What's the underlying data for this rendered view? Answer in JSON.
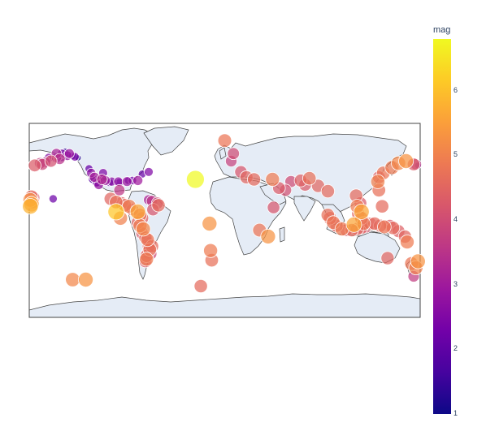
{
  "colorbar": {
    "title": "mag",
    "ticks": [
      "1",
      "2",
      "3",
      "4",
      "5",
      "6"
    ],
    "range": [
      1,
      6.8
    ],
    "colorscale": [
      "#0d0887",
      "#46039f",
      "#7201a8",
      "#9c179e",
      "#bd3786",
      "#d8576b",
      "#ed7953",
      "#fb9f3a",
      "#fdca26",
      "#f0f921"
    ]
  },
  "map_data": {
    "projection": "equirectangular",
    "land_color": "#e5ecf6",
    "coastline_color": "#444444",
    "points": [
      {
        "lon": -178,
        "lat": 22,
        "mag": 4.6
      },
      {
        "lon": -177,
        "lat": 17,
        "mag": 4.8
      },
      {
        "lon": -179,
        "lat": 19,
        "mag": 5.2
      },
      {
        "lon": -178,
        "lat": 15,
        "mag": 5.5
      },
      {
        "lon": -176,
        "lat": 21,
        "mag": 4.2
      },
      {
        "lon": -179,
        "lat": 13,
        "mag": 5.8
      },
      {
        "lon": -170,
        "lat": 53,
        "mag": 3.7
      },
      {
        "lon": -165,
        "lat": 54,
        "mag": 3.3
      },
      {
        "lon": -160,
        "lat": 55,
        "mag": 4.1
      },
      {
        "lon": -155,
        "lat": 58,
        "mag": 3.0
      },
      {
        "lon": -152,
        "lat": 60,
        "mag": 2.2
      },
      {
        "lon": -150,
        "lat": 62,
        "mag": 2.5
      },
      {
        "lon": -148,
        "lat": 61,
        "mag": 1.7
      },
      {
        "lon": -147,
        "lat": 64,
        "mag": 1.4
      },
      {
        "lon": -145,
        "lat": 60,
        "mag": 2.8
      },
      {
        "lon": -152,
        "lat": 57,
        "mag": 3.5
      },
      {
        "lon": -140,
        "lat": 60,
        "mag": 1.9
      },
      {
        "lon": -138,
        "lat": 59,
        "mag": 2.4
      },
      {
        "lon": -135,
        "lat": 58,
        "mag": 1.2
      },
      {
        "lon": -143,
        "lat": 62,
        "mag": 2.9
      },
      {
        "lon": -155,
        "lat": 62,
        "mag": 3.2
      },
      {
        "lon": -162,
        "lat": 58,
        "mag": 2.6
      },
      {
        "lon": -150,
        "lat": 58,
        "mag": 1.8
      },
      {
        "lon": -175,
        "lat": 51,
        "mag": 4.3
      },
      {
        "lon": -168,
        "lat": 52,
        "mag": 3.9
      },
      {
        "lon": -125,
        "lat": 48,
        "mag": 2.1
      },
      {
        "lon": -123,
        "lat": 44,
        "mag": 2.7
      },
      {
        "lon": -122,
        "lat": 38,
        "mag": 1.9
      },
      {
        "lon": -121,
        "lat": 37,
        "mag": 1.3
      },
      {
        "lon": -118,
        "lat": 35,
        "mag": 2.3
      },
      {
        "lon": -117,
        "lat": 34,
        "mag": 1.5
      },
      {
        "lon": -116,
        "lat": 33,
        "mag": 2.8
      },
      {
        "lon": -120,
        "lat": 40,
        "mag": 3.1
      },
      {
        "lon": -119,
        "lat": 38,
        "mag": 1.6
      },
      {
        "lon": -116,
        "lat": 37,
        "mag": 2.2
      },
      {
        "lon": -113,
        "lat": 38,
        "mag": 3.3
      },
      {
        "lon": -111,
        "lat": 40,
        "mag": 1.8
      },
      {
        "lon": -112,
        "lat": 44,
        "mag": 2.5
      },
      {
        "lon": -110,
        "lat": 37,
        "mag": 3.0
      },
      {
        "lon": -106,
        "lat": 35,
        "mag": 2.0
      },
      {
        "lon": -104,
        "lat": 36,
        "mag": 2.6
      },
      {
        "lon": -98,
        "lat": 36,
        "mag": 2.7
      },
      {
        "lon": -97,
        "lat": 35,
        "mag": 2.2
      },
      {
        "lon": -97,
        "lat": 28,
        "mag": 3.6
      },
      {
        "lon": -90,
        "lat": 36,
        "mag": 2.9
      },
      {
        "lon": -89,
        "lat": 37,
        "mag": 1.9
      },
      {
        "lon": -85,
        "lat": 37,
        "mag": 2.3
      },
      {
        "lon": -80,
        "lat": 37,
        "mag": 3.0
      },
      {
        "lon": -76,
        "lat": 43,
        "mag": 2.1
      },
      {
        "lon": -70,
        "lat": 45,
        "mag": 2.5
      },
      {
        "lon": -158,
        "lat": 20,
        "mag": 2.2
      },
      {
        "lon": -105,
        "lat": 20,
        "mag": 4.5
      },
      {
        "lon": -100,
        "lat": 17,
        "mag": 4.7
      },
      {
        "lon": -95,
        "lat": 16,
        "mag": 4.4
      },
      {
        "lon": -92,
        "lat": 14,
        "mag": 4.6
      },
      {
        "lon": -88,
        "lat": 13,
        "mag": 4.9
      },
      {
        "lon": -85,
        "lat": 10,
        "mag": 4.3
      },
      {
        "lon": -80,
        "lat": 8,
        "mag": 5.6
      },
      {
        "lon": -78,
        "lat": 5,
        "mag": 4.8
      },
      {
        "lon": -76,
        "lat": 2,
        "mag": 4.4
      },
      {
        "lon": -80,
        "lat": -2,
        "mag": 4.5
      },
      {
        "lon": -78,
        "lat": -5,
        "mag": 4.9
      },
      {
        "lon": -75,
        "lat": -8,
        "mag": 5.1
      },
      {
        "lon": -100,
        "lat": 8,
        "mag": 6.1
      },
      {
        "lon": -96,
        "lat": 2,
        "mag": 5.0
      },
      {
        "lon": -67,
        "lat": 18,
        "mag": 3.6
      },
      {
        "lon": -65,
        "lat": 17,
        "mag": 2.4
      },
      {
        "lon": -62,
        "lat": 16,
        "mag": 4.0
      },
      {
        "lon": -61,
        "lat": 14,
        "mag": 4.6
      },
      {
        "lon": -66,
        "lat": 10,
        "mag": 4.2
      },
      {
        "lon": -70,
        "lat": 19,
        "mag": 3.2
      },
      {
        "lon": -76,
        "lat": -12,
        "mag": 4.3
      },
      {
        "lon": -73,
        "lat": -16,
        "mag": 4.5
      },
      {
        "lon": -71,
        "lat": -18,
        "mag": 4.8
      },
      {
        "lon": -70,
        "lat": -21,
        "mag": 4.2
      },
      {
        "lon": -70,
        "lat": -24,
        "mag": 4.4
      },
      {
        "lon": -69,
        "lat": -27,
        "mag": 4.7
      },
      {
        "lon": -71,
        "lat": -30,
        "mag": 4.1
      },
      {
        "lon": -72,
        "lat": -33,
        "mag": 4.5
      },
      {
        "lon": -72,
        "lat": -36,
        "mag": 4.9
      },
      {
        "lon": -73,
        "lat": -38,
        "mag": 4.3
      },
      {
        "lon": -67,
        "lat": -24,
        "mag": 4.6
      },
      {
        "lon": -68,
        "lat": -31,
        "mag": 4.0
      },
      {
        "lon": -140,
        "lat": -55,
        "mag": 5.1
      },
      {
        "lon": -128,
        "lat": -55,
        "mag": 5.3
      },
      {
        "lon": -27,
        "lat": 38,
        "mag": 6.8
      },
      {
        "lon": -14,
        "lat": -3,
        "mag": 5.3
      },
      {
        "lon": -13,
        "lat": -28,
        "mag": 4.9
      },
      {
        "lon": -12,
        "lat": -37,
        "mag": 4.7
      },
      {
        "lon": -22,
        "lat": -61,
        "mag": 4.6
      },
      {
        "lon": 0,
        "lat": 74,
        "mag": 4.8
      },
      {
        "lon": 8,
        "lat": 62,
        "mag": 4.0
      },
      {
        "lon": 6,
        "lat": 55,
        "mag": 3.8
      },
      {
        "lon": 15,
        "lat": 45,
        "mag": 4.2
      },
      {
        "lon": 20,
        "lat": 40,
        "mag": 4.5
      },
      {
        "lon": 27,
        "lat": 38,
        "mag": 4.6
      },
      {
        "lon": 44,
        "lat": 38,
        "mag": 4.9
      },
      {
        "lon": 50,
        "lat": 30,
        "mag": 4.3
      },
      {
        "lon": 56,
        "lat": 28,
        "mag": 4.1
      },
      {
        "lon": 70,
        "lat": 37,
        "mag": 4.4
      },
      {
        "lon": 78,
        "lat": 39,
        "mag": 4.7
      },
      {
        "lon": 86,
        "lat": 32,
        "mag": 4.5
      },
      {
        "lon": 95,
        "lat": 27,
        "mag": 4.6
      },
      {
        "lon": 74,
        "lat": 33,
        "mag": 4.3
      },
      {
        "lon": 61,
        "lat": 36,
        "mag": 4.0
      },
      {
        "lon": 45,
        "lat": 12,
        "mag": 4.2
      },
      {
        "lon": 32,
        "lat": -9,
        "mag": 4.8
      },
      {
        "lon": 40,
        "lat": -15,
        "mag": 5.3
      },
      {
        "lon": 95,
        "lat": 5,
        "mag": 4.7
      },
      {
        "lon": 97,
        "lat": 2,
        "mag": 4.6
      },
      {
        "lon": 100,
        "lat": -2,
        "mag": 4.8
      },
      {
        "lon": 103,
        "lat": -5,
        "mag": 4.5
      },
      {
        "lon": 108,
        "lat": -8,
        "mag": 4.9
      },
      {
        "lon": 112,
        "lat": -9,
        "mag": 4.3
      },
      {
        "lon": 117,
        "lat": -9,
        "mag": 4.6
      },
      {
        "lon": 122,
        "lat": -8,
        "mag": 4.5
      },
      {
        "lon": 126,
        "lat": -7,
        "mag": 4.4
      },
      {
        "lon": 128,
        "lat": -3,
        "mag": 4.8
      },
      {
        "lon": 126,
        "lat": 2,
        "mag": 4.7
      },
      {
        "lon": 123,
        "lat": 6,
        "mag": 4.5
      },
      {
        "lon": 122,
        "lat": 13,
        "mag": 4.9
      },
      {
        "lon": 125,
        "lat": 16,
        "mag": 4.3
      },
      {
        "lon": 121,
        "lat": 23,
        "mag": 4.6
      },
      {
        "lon": 119,
        "lat": -4,
        "mag": 5.6
      },
      {
        "lon": 134,
        "lat": -3,
        "mag": 4.4
      },
      {
        "lon": 138,
        "lat": -3,
        "mag": 4.6
      },
      {
        "lon": 143,
        "lat": -5,
        "mag": 4.5
      },
      {
        "lon": 147,
        "lat": -6,
        "mag": 4.8
      },
      {
        "lon": 152,
        "lat": -5,
        "mag": 4.3
      },
      {
        "lon": 155,
        "lat": -7,
        "mag": 4.6
      },
      {
        "lon": 160,
        "lat": -10,
        "mag": 4.4
      },
      {
        "lon": 166,
        "lat": -15,
        "mag": 4.5
      },
      {
        "lon": 168,
        "lat": -20,
        "mag": 4.9
      },
      {
        "lon": 126,
        "lat": 8,
        "mag": 5.6
      },
      {
        "lon": 130,
        "lat": -6,
        "mag": 4.2
      },
      {
        "lon": 145,
        "lat": 13,
        "mag": 4.6
      },
      {
        "lon": 142,
        "lat": 28,
        "mag": 4.7
      },
      {
        "lon": 141,
        "lat": 36,
        "mag": 5.0
      },
      {
        "lon": 142,
        "lat": 40,
        "mag": 4.4
      },
      {
        "lon": 146,
        "lat": 44,
        "mag": 4.8
      },
      {
        "lon": 154,
        "lat": 49,
        "mag": 4.9
      },
      {
        "lon": 160,
        "lat": 53,
        "mag": 5.1
      },
      {
        "lon": 167,
        "lat": 55,
        "mag": 5.3
      },
      {
        "lon": 174,
        "lat": 52,
        "mag": 4.3
      },
      {
        "lon": 178,
        "lat": 51,
        "mag": 1.4
      },
      {
        "lon": 176,
        "lat": 52,
        "mag": 3.6
      },
      {
        "lon": 172,
        "lat": -40,
        "mag": 4.8
      },
      {
        "lon": 178,
        "lat": -38,
        "mag": 5.3
      },
      {
        "lon": 176,
        "lat": -44,
        "mag": 5.0
      },
      {
        "lon": 174,
        "lat": -52,
        "mag": 3.7
      },
      {
        "lon": 150,
        "lat": -35,
        "mag": 4.5
      }
    ]
  }
}
